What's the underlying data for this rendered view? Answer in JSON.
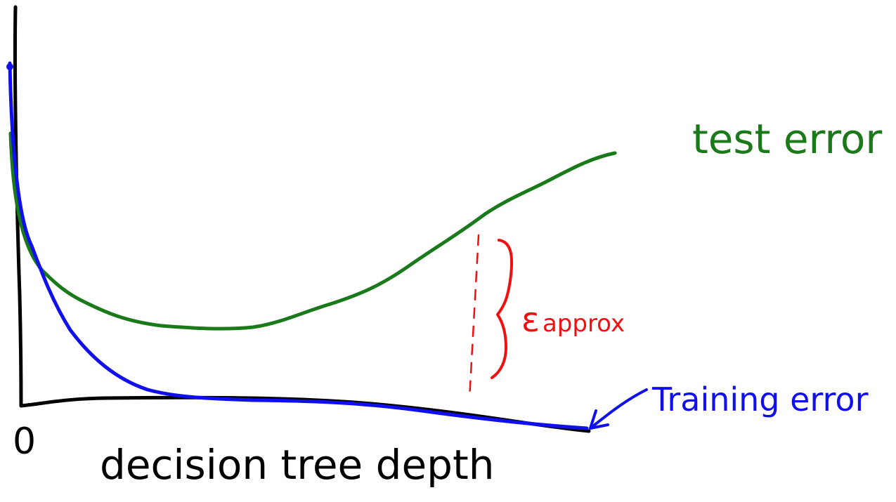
{
  "labels": {
    "test_error": "test error",
    "training_error": "Training error",
    "x_axis": "decision tree depth",
    "origin": "0",
    "gap_symbol": "ε",
    "gap_subscript": "approx"
  }
}
